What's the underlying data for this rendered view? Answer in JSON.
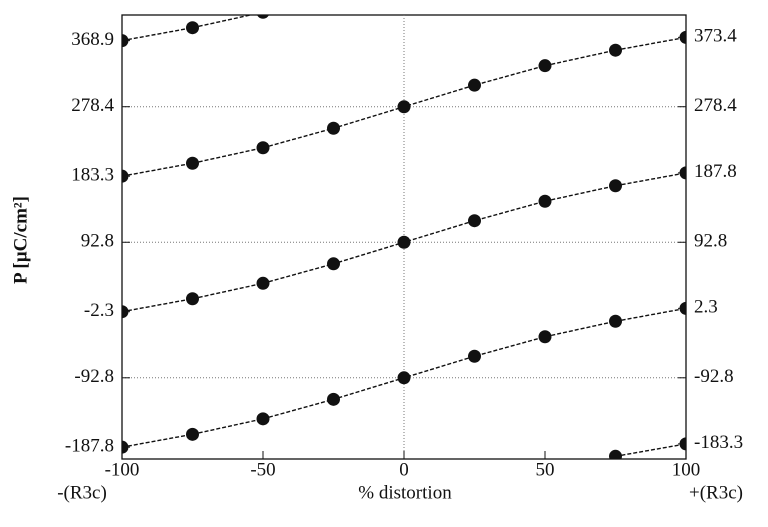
{
  "chart_data": {
    "type": "line",
    "x": [
      -100,
      -75,
      -50,
      -25,
      0,
      25,
      50,
      75,
      100
    ],
    "series": [
      {
        "color": "#111111",
        "values": [
          368.9,
          386.6,
          407.8,
          null,
          null,
          null,
          null,
          null,
          null
        ]
      },
      {
        "color": "#111111",
        "values": [
          183.3,
          201.0,
          222.2,
          248.9,
          278.4,
          307.9,
          334.6,
          355.8,
          373.4
        ]
      },
      {
        "color": "#111111",
        "values": [
          -2.3,
          15.4,
          36.6,
          63.3,
          92.8,
          122.3,
          149.0,
          170.2,
          187.8
        ]
      },
      {
        "color": "#111111",
        "values": [
          -187.8,
          -170.2,
          -149.0,
          -122.3,
          -92.8,
          -63.3,
          -36.6,
          -15.4,
          2.3
        ]
      },
      {
        "color": "#111111",
        "values": [
          null,
          null,
          null,
          null,
          null,
          null,
          null,
          -200.3,
          -183.3
        ]
      }
    ],
    "xlim": [
      -100,
      100
    ],
    "xticks": [
      -100,
      -50,
      0,
      50,
      100
    ],
    "ylim": [
      -204,
      404
    ],
    "yticks": [
      -187.8,
      -92.8,
      -2.3,
      92.8,
      183.3,
      278.4,
      368.9
    ],
    "y2lim": [
      -204,
      404
    ],
    "y2ticks": [
      -183.3,
      -92.8,
      2.3,
      92.8,
      187.8,
      278.4,
      373.4
    ],
    "xgrid": [
      0
    ],
    "ygrid": [
      -92.8,
      92.8,
      278.4
    ],
    "xlabel": "% distortion",
    "ylabel": "P [µC/cm²]",
    "left_end_label": "-(R3c)",
    "right_end_label": "+(R3c)"
  }
}
